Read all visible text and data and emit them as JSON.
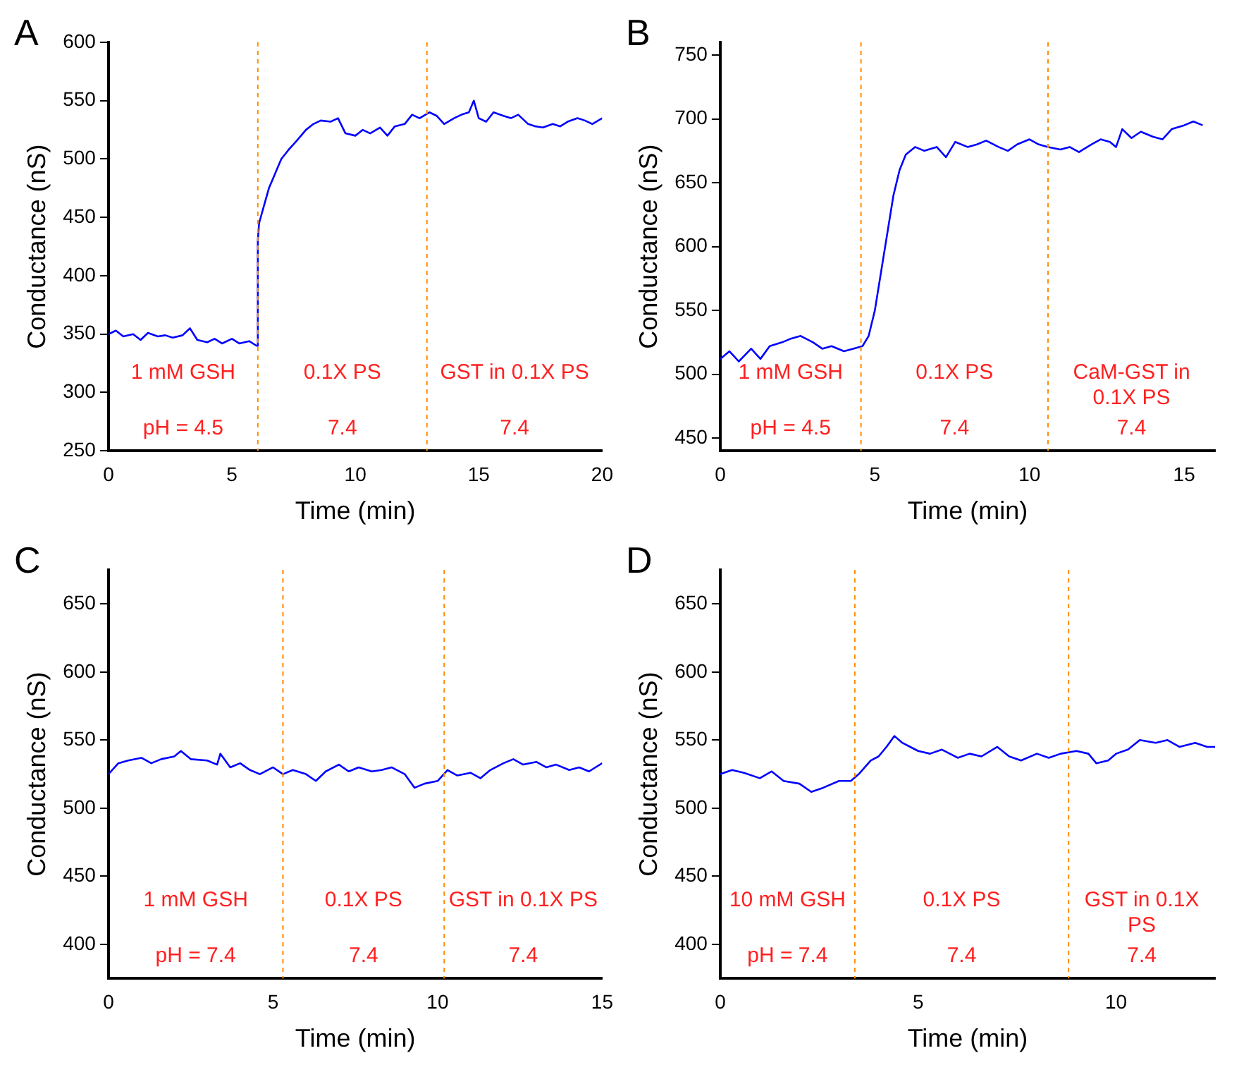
{
  "chart_data": [
    {
      "type": "line",
      "title": "A",
      "xlabel": "Time (min)",
      "ylabel": "Conductance (nS)",
      "xlim": [
        0,
        20
      ],
      "xticks": [
        0,
        5,
        10,
        15,
        20
      ],
      "ylim": [
        250,
        600
      ],
      "yticks": [
        250,
        300,
        350,
        400,
        450,
        500,
        550,
        600
      ],
      "grid": false,
      "legend": false,
      "marker": "none",
      "series": [
        {
          "color": "#0000ff",
          "x": [
            0,
            0.3,
            0.6,
            1,
            1.3,
            1.6,
            2,
            2.3,
            2.6,
            3,
            3.3,
            3.6,
            4,
            4.3,
            4.6,
            5,
            5.3,
            5.7,
            6,
            6.05,
            6.1,
            6.3,
            6.5,
            6.8,
            7,
            7.3,
            7.6,
            8,
            8.3,
            8.6,
            9,
            9.3,
            9.6,
            10,
            10.3,
            10.6,
            11,
            11.3,
            11.6,
            12,
            12.3,
            12.6,
            13,
            13.3,
            13.6,
            14,
            14.3,
            14.6,
            14.8,
            15,
            15.3,
            15.6,
            16,
            16.3,
            16.6,
            17,
            17.3,
            17.6,
            18,
            18.3,
            18.6,
            19,
            19.3,
            19.6,
            20
          ],
          "values": [
            350,
            353,
            348,
            350,
            345,
            351,
            348,
            349,
            347,
            349,
            355,
            345,
            343,
            346,
            342,
            346,
            342,
            344,
            340,
            430,
            445,
            460,
            475,
            490,
            500,
            508,
            515,
            525,
            530,
            533,
            532,
            535,
            522,
            520,
            525,
            522,
            527,
            520,
            528,
            530,
            538,
            535,
            540,
            537,
            530,
            535,
            538,
            540,
            550,
            535,
            532,
            540,
            537,
            535,
            538,
            530,
            528,
            527,
            530,
            528,
            532,
            535,
            533,
            530,
            535
          ]
        }
      ],
      "ref_lines": [
        {
          "axis": "x",
          "value": 6.05,
          "color": "#ff8c00",
          "line_style": "dashed"
        },
        {
          "axis": "x",
          "value": 12.9,
          "color": "#ff8c00",
          "line_style": "dashed"
        }
      ],
      "annotations": [
        "1 mM GSH",
        "0.1X PS",
        "GST in 0.1X PS",
        "pH = 4.5",
        "7.4",
        "7.4"
      ]
    },
    {
      "type": "line",
      "title": "B",
      "xlabel": "Time (min)",
      "ylabel": "Conductance (nS)",
      "xlim": [
        0,
        16
      ],
      "xticks": [
        0,
        5,
        10,
        15
      ],
      "ylim": [
        440,
        760
      ],
      "yticks": [
        450,
        500,
        550,
        600,
        650,
        700,
        750
      ],
      "grid": false,
      "legend": false,
      "marker": "none",
      "series": [
        {
          "color": "#0000ff",
          "x": [
            0,
            0.3,
            0.6,
            1,
            1.3,
            1.6,
            2,
            2.3,
            2.6,
            3,
            3.3,
            3.6,
            4,
            4.3,
            4.6,
            4.8,
            5,
            5.2,
            5.4,
            5.6,
            5.8,
            6,
            6.3,
            6.6,
            7,
            7.3,
            7.6,
            8,
            8.3,
            8.6,
            9,
            9.3,
            9.6,
            10,
            10.3,
            10.6,
            11,
            11.3,
            11.6,
            12,
            12.3,
            12.6,
            12.8,
            13,
            13.3,
            13.6,
            14,
            14.3,
            14.6,
            15,
            15.3,
            15.6
          ],
          "values": [
            512,
            518,
            510,
            520,
            512,
            522,
            525,
            528,
            530,
            525,
            520,
            522,
            518,
            520,
            522,
            530,
            550,
            580,
            610,
            640,
            660,
            672,
            678,
            675,
            678,
            670,
            682,
            678,
            680,
            683,
            678,
            675,
            680,
            684,
            680,
            678,
            676,
            678,
            674,
            680,
            684,
            682,
            678,
            692,
            685,
            690,
            686,
            684,
            692,
            695,
            698,
            695
          ]
        }
      ],
      "ref_lines": [
        {
          "axis": "x",
          "value": 4.55,
          "color": "#ff8c00",
          "line_style": "dashed"
        },
        {
          "axis": "x",
          "value": 10.6,
          "color": "#ff8c00",
          "line_style": "dashed"
        }
      ],
      "annotations": [
        "1 mM GSH",
        "0.1X PS",
        "CaM-GST in 0.1X PS",
        "pH = 4.5",
        "7.4",
        "7.4"
      ]
    },
    {
      "type": "line",
      "title": "C",
      "xlabel": "Time (min)",
      "ylabel": "Conductance (nS)",
      "xlim": [
        0,
        15
      ],
      "xticks": [
        0,
        5,
        10,
        15
      ],
      "ylim": [
        375,
        675
      ],
      "yticks": [
        400,
        450,
        500,
        550,
        600,
        650
      ],
      "grid": false,
      "legend": false,
      "marker": "none",
      "series": [
        {
          "color": "#0000ff",
          "x": [
            0,
            0.3,
            0.6,
            1,
            1.3,
            1.6,
            2,
            2.2,
            2.5,
            3,
            3.3,
            3.4,
            3.7,
            4,
            4.3,
            4.6,
            5,
            5.3,
            5.6,
            6,
            6.3,
            6.6,
            7,
            7.3,
            7.6,
            8,
            8.3,
            8.6,
            9,
            9.3,
            9.6,
            10,
            10.3,
            10.6,
            11,
            11.3,
            11.6,
            12,
            12.3,
            12.6,
            13,
            13.3,
            13.6,
            14,
            14.3,
            14.6,
            15
          ],
          "values": [
            525,
            533,
            535,
            537,
            533,
            536,
            538,
            542,
            536,
            535,
            532,
            540,
            530,
            533,
            528,
            525,
            530,
            525,
            528,
            525,
            520,
            527,
            532,
            527,
            530,
            527,
            528,
            530,
            525,
            515,
            518,
            520,
            528,
            524,
            526,
            522,
            528,
            533,
            536,
            532,
            534,
            530,
            532,
            528,
            530,
            527,
            533
          ]
        }
      ],
      "ref_lines": [
        {
          "axis": "x",
          "value": 5.3,
          "color": "#ff8c00",
          "line_style": "dashed"
        },
        {
          "axis": "x",
          "value": 10.2,
          "color": "#ff8c00",
          "line_style": "dashed"
        }
      ],
      "annotations": [
        "1 mM GSH",
        "0.1X PS",
        "GST in 0.1X PS",
        "pH = 7.4",
        "7.4",
        "7.4"
      ]
    },
    {
      "type": "line",
      "title": "D",
      "xlabel": "Time (min)",
      "ylabel": "Conductance (nS)",
      "xlim": [
        0,
        12.5
      ],
      "xticks": [
        0,
        5,
        10
      ],
      "ylim": [
        375,
        675
      ],
      "yticks": [
        400,
        450,
        500,
        550,
        600,
        650
      ],
      "grid": false,
      "legend": false,
      "marker": "none",
      "series": [
        {
          "color": "#0000ff",
          "x": [
            0,
            0.3,
            0.6,
            1,
            1.3,
            1.6,
            2,
            2.3,
            2.6,
            3,
            3.3,
            3.5,
            3.8,
            4,
            4.2,
            4.4,
            4.6,
            4.8,
            5,
            5.3,
            5.6,
            6,
            6.3,
            6.6,
            7,
            7.3,
            7.6,
            8,
            8.3,
            8.6,
            9,
            9.3,
            9.5,
            9.8,
            10,
            10.3,
            10.6,
            11,
            11.3,
            11.6,
            12,
            12.3,
            12.5
          ],
          "values": [
            525,
            528,
            526,
            522,
            527,
            520,
            518,
            512,
            515,
            520,
            520,
            525,
            535,
            538,
            545,
            553,
            548,
            545,
            542,
            540,
            543,
            537,
            540,
            538,
            545,
            538,
            535,
            540,
            537,
            540,
            542,
            540,
            533,
            535,
            540,
            543,
            550,
            548,
            550,
            545,
            548,
            545,
            545
          ]
        }
      ],
      "ref_lines": [
        {
          "axis": "x",
          "value": 3.4,
          "color": "#ff8c00",
          "line_style": "dashed"
        },
        {
          "axis": "x",
          "value": 8.8,
          "color": "#ff8c00",
          "line_style": "dashed"
        }
      ],
      "annotations": [
        "10 mM GSH",
        "0.1X PS",
        "GST in 0.1X PS",
        "pH = 7.4",
        "7.4",
        "7.4"
      ]
    }
  ]
}
